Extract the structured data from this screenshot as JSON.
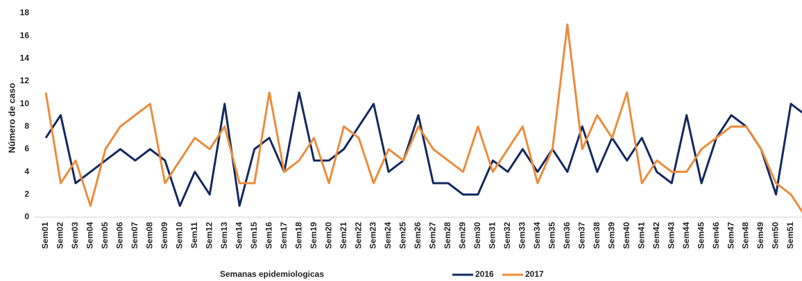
{
  "chart_data": {
    "type": "line",
    "x_label": "Semanas epidemiologicas",
    "y_label": "Número de caso",
    "categories": [
      "Sem01",
      "Sem02",
      "Sem03",
      "Sem04",
      "Sem05",
      "Sem06",
      "Sem07",
      "Sem08",
      "Sem09",
      "Sem10",
      "Sem11",
      "Sem12",
      "Sem13",
      "Sem14",
      "Sem15",
      "Sem16",
      "Sem17",
      "Sem18",
      "Sem19",
      "Sem20",
      "Sem21",
      "Sem22",
      "Sem23",
      "Sem24",
      "Sem25",
      "Sem26",
      "Sem27",
      "Sem28",
      "Sem29",
      "Sem30",
      "Sem31",
      "Sem32",
      "Sem33",
      "Sem34",
      "Sem35",
      "Sem36",
      "Sem37",
      "Sem38",
      "Sem39",
      "Sem40",
      "Sem41",
      "Sem42",
      "Sem43",
      "Sem44",
      "Sem45",
      "Sem46",
      "Sem47",
      "Sem48",
      "Sem49",
      "Sem50",
      "Sem51",
      null
    ],
    "series": [
      {
        "name": "2016",
        "color": "#12285e",
        "values": [
          7,
          9,
          3,
          4,
          5,
          6,
          5,
          6,
          5,
          1,
          4,
          2,
          10,
          1,
          6,
          7,
          4,
          11,
          5,
          5,
          6,
          8,
          10,
          4,
          5,
          9,
          3,
          3,
          2,
          2,
          5,
          4,
          6,
          4,
          6,
          4,
          8,
          4,
          7,
          5,
          7,
          4,
          3,
          9,
          3,
          7,
          9,
          8,
          6,
          2,
          10,
          9
        ]
      },
      {
        "name": "2017",
        "color": "#ed8b3a",
        "values": [
          11,
          3,
          5,
          1,
          6,
          8,
          9,
          10,
          3,
          5,
          7,
          6,
          8,
          3,
          3,
          11,
          4,
          5,
          7,
          3,
          8,
          7,
          3,
          6,
          5,
          8,
          6,
          5,
          4,
          8,
          4,
          6,
          8,
          3,
          6,
          17,
          6,
          9,
          7,
          11,
          3,
          5,
          4,
          4,
          6,
          7,
          8,
          8,
          6,
          3,
          2,
          0
        ]
      }
    ],
    "ylim": [
      0,
      18
    ],
    "yticks": [
      0,
      2,
      4,
      6,
      8,
      10,
      12,
      14,
      16,
      18
    ],
    "grid": false
  }
}
